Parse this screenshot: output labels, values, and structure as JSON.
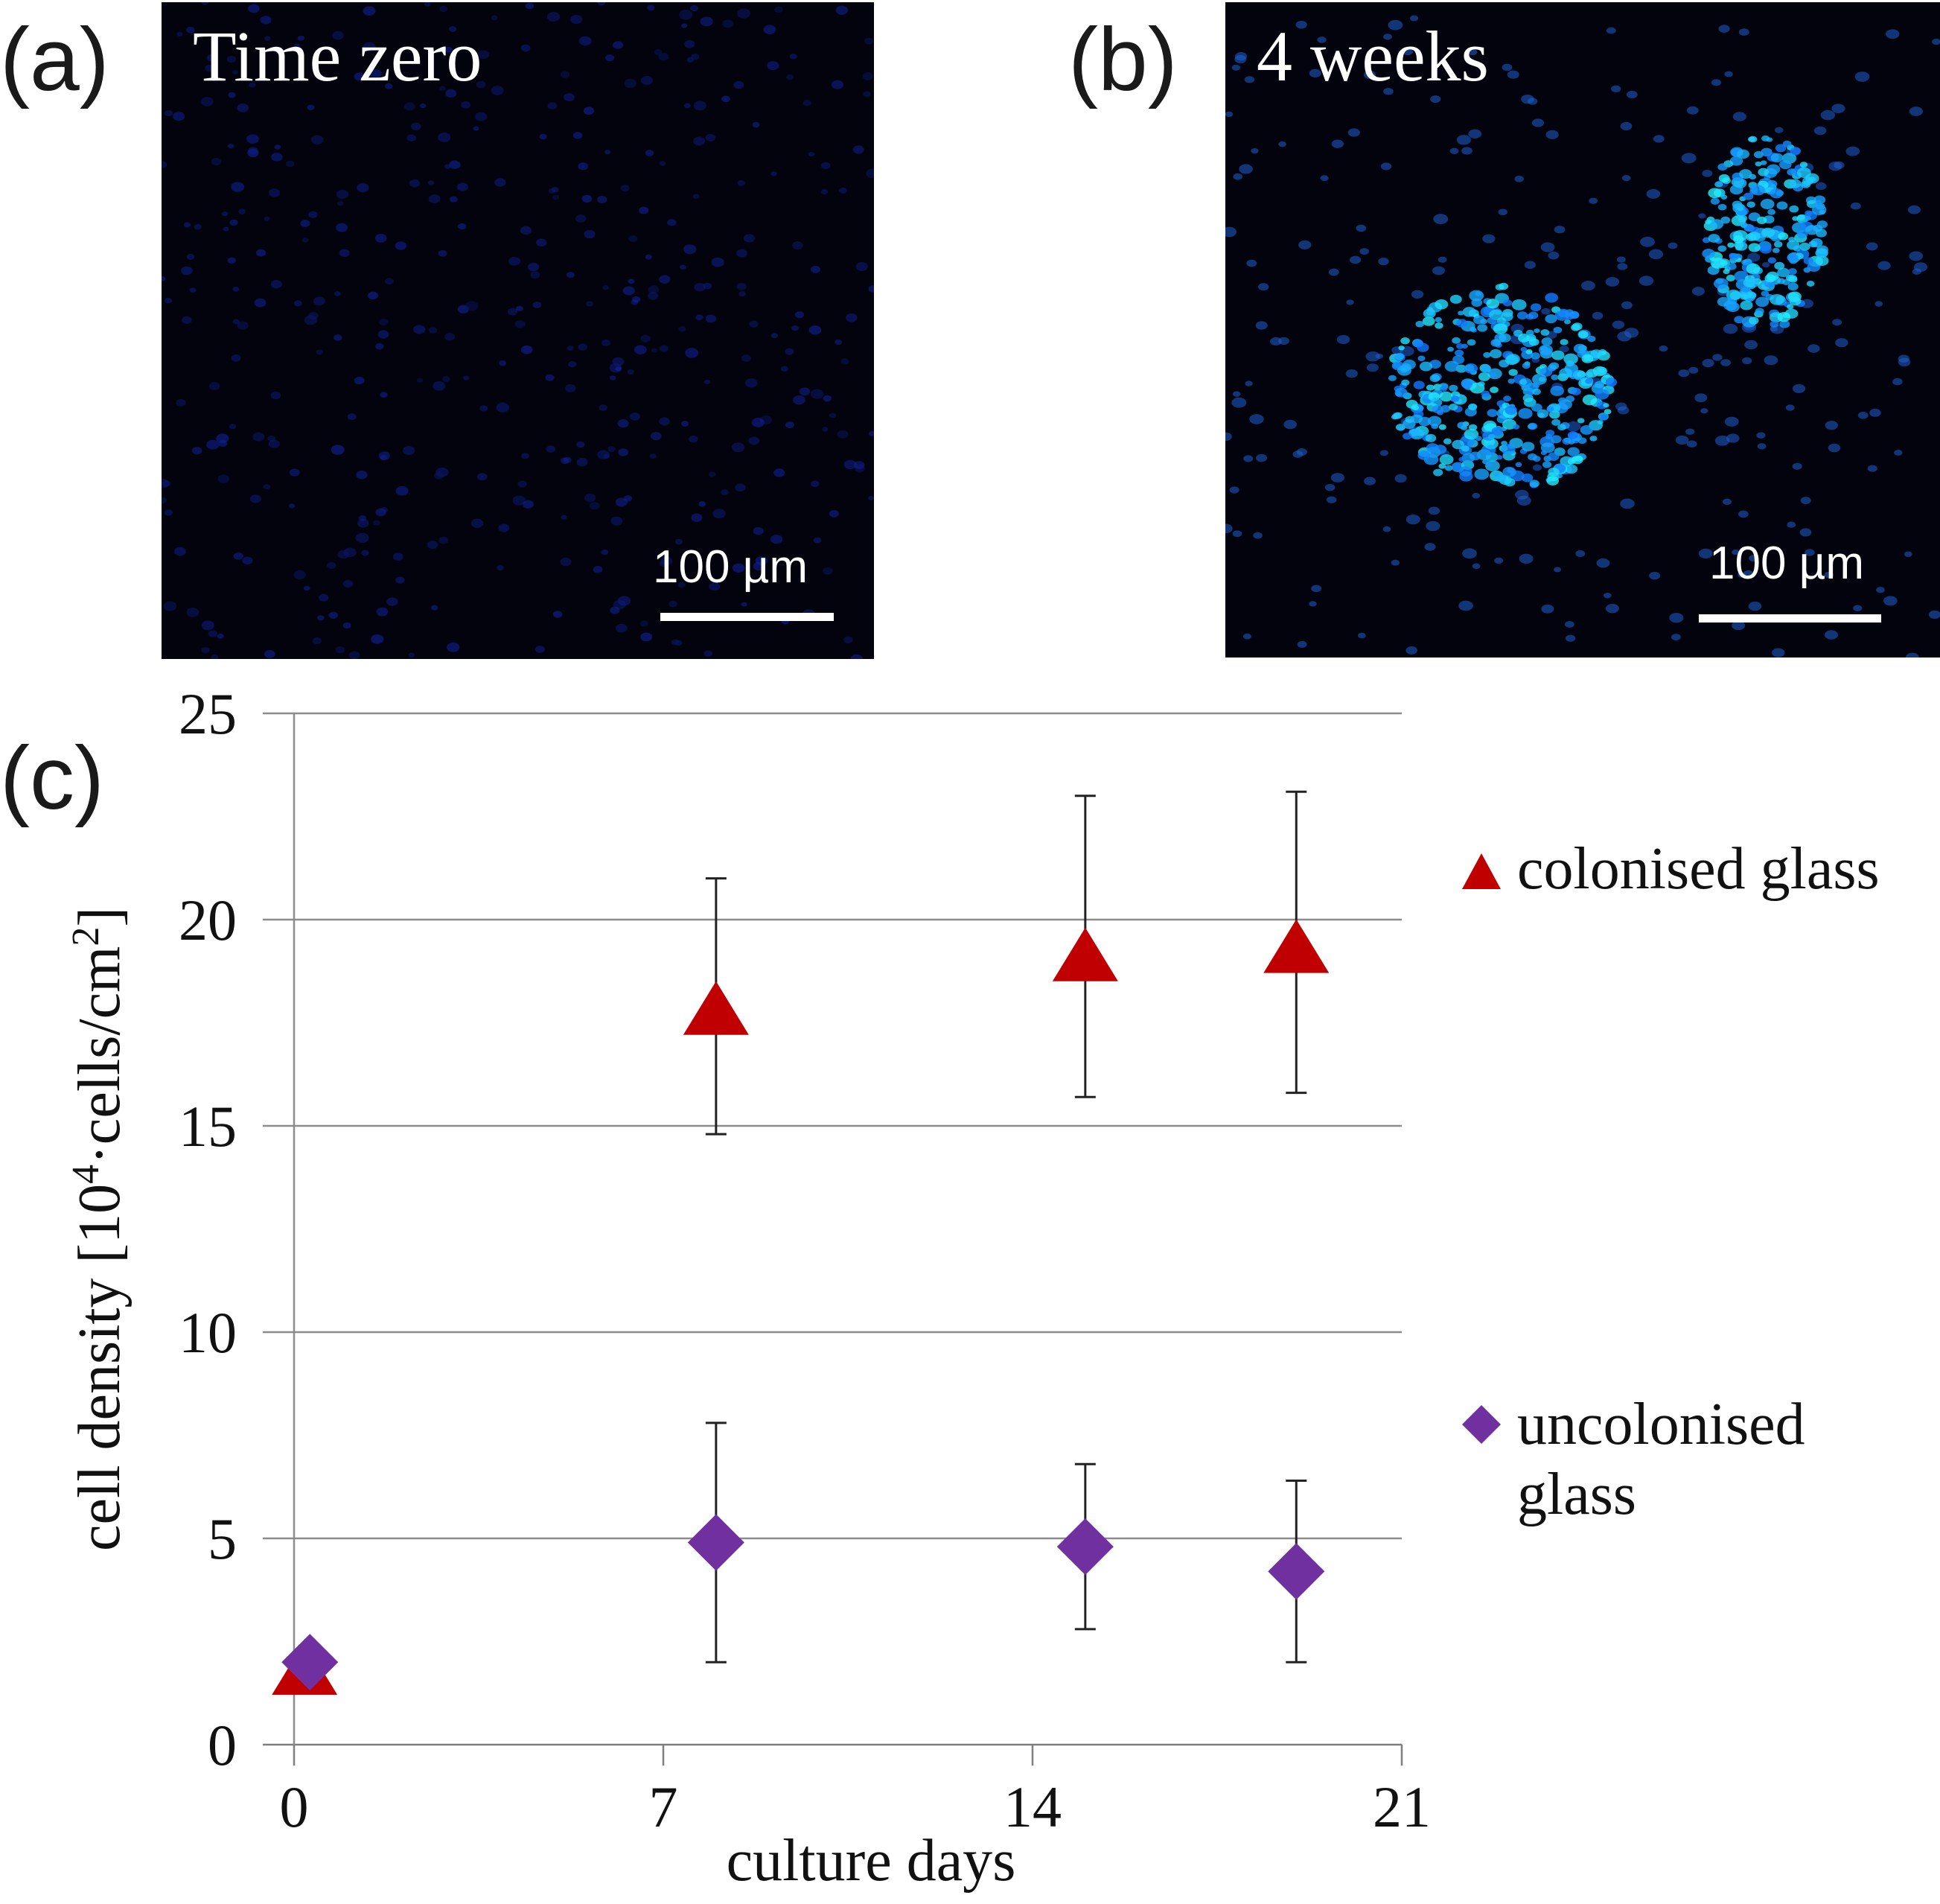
{
  "panels": {
    "a": {
      "letter": "(a)",
      "title": "Time zero",
      "scale_label": "100 µm"
    },
    "b": {
      "letter": "(b)",
      "title": "4 weeks",
      "scale_label": "100 µm"
    },
    "c": {
      "letter": "(c)"
    }
  },
  "chart_data": {
    "type": "scatter",
    "xlabel": "culture days",
    "ylabel_main": "cell density [10",
    "ylabel_sup1": "4",
    "ylabel_mid": "·cells/cm",
    "ylabel_sup2": "2",
    "ylabel_end": "]",
    "xlim": [
      0,
      21
    ],
    "ylim": [
      0,
      25
    ],
    "xticks": [
      0,
      7,
      14,
      21
    ],
    "yticks": [
      0,
      5,
      10,
      15,
      20,
      25
    ],
    "grid": "horizontal",
    "legend_position": "right",
    "series": [
      {
        "name": "colonised glass",
        "marker": "triangle",
        "color": "#c00000",
        "points": [
          {
            "x": 0.2,
            "y": 1.7,
            "err_low": null,
            "err_high": null
          },
          {
            "x": 8,
            "y": 17.7,
            "err_low": 14.8,
            "err_high": 21.0
          },
          {
            "x": 15,
            "y": 19.0,
            "err_low": 15.7,
            "err_high": 23.0
          },
          {
            "x": 19,
            "y": 19.2,
            "err_low": 15.8,
            "err_high": 23.1
          }
        ]
      },
      {
        "name": "uncolonised glass",
        "name_line1": "uncolonised",
        "name_line2": "glass",
        "marker": "diamond",
        "color": "#7030a0",
        "points": [
          {
            "x": 0.3,
            "y": 2.0,
            "err_low": null,
            "err_high": null
          },
          {
            "x": 8,
            "y": 4.9,
            "err_low": 2.0,
            "err_high": 7.8
          },
          {
            "x": 15,
            "y": 4.8,
            "err_low": 2.8,
            "err_high": 6.8
          },
          {
            "x": 19,
            "y": 4.2,
            "err_low": 2.0,
            "err_high": 6.4
          }
        ]
      }
    ]
  }
}
